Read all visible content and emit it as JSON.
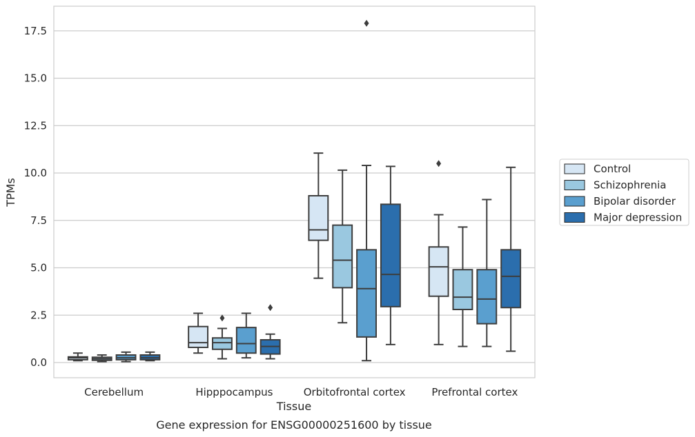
{
  "chart_data": {
    "type": "box",
    "caption": "Gene expression for ENSG00000251600 by tissue",
    "xlabel": "Tissue",
    "ylabel": "TPMs",
    "ylim": [
      -0.8,
      18.8
    ],
    "yticks": [
      "0.0",
      "2.5",
      "5.0",
      "7.5",
      "10.0",
      "12.5",
      "15.0",
      "17.5"
    ],
    "ytick_values": [
      0,
      2.5,
      5.0,
      7.5,
      10.0,
      12.5,
      15.0,
      17.5
    ],
    "grid": "horizontal",
    "legend_position": "right",
    "categories": [
      "Cerebellum",
      "Hipppocampus",
      "Orbitofrontal cortex",
      "Prefrontal cortex"
    ],
    "series": [
      {
        "name": "Control",
        "color": "#d6e6f4",
        "boxes": [
          {
            "whisker_low": 0.1,
            "q1": 0.15,
            "median": 0.25,
            "q3": 0.3,
            "whisker_high": 0.5,
            "outliers": []
          },
          {
            "whisker_low": 0.5,
            "q1": 0.8,
            "median": 1.05,
            "q3": 1.9,
            "whisker_high": 2.6,
            "outliers": []
          },
          {
            "whisker_low": 4.45,
            "q1": 6.45,
            "median": 7.0,
            "q3": 8.8,
            "whisker_high": 11.05,
            "outliers": []
          },
          {
            "whisker_low": 0.95,
            "q1": 3.5,
            "median": 5.05,
            "q3": 6.1,
            "whisker_high": 7.8,
            "outliers": [
              10.5
            ]
          }
        ]
      },
      {
        "name": "Schizophrenia",
        "color": "#9ac8e0",
        "boxes": [
          {
            "whisker_low": 0.05,
            "q1": 0.12,
            "median": 0.2,
            "q3": 0.28,
            "whisker_high": 0.4,
            "outliers": []
          },
          {
            "whisker_low": 0.2,
            "q1": 0.7,
            "median": 1.05,
            "q3": 1.3,
            "whisker_high": 1.8,
            "outliers": [
              2.35
            ]
          },
          {
            "whisker_low": 2.1,
            "q1": 3.95,
            "median": 5.4,
            "q3": 7.25,
            "whisker_high": 10.15,
            "outliers": []
          },
          {
            "whisker_low": 0.85,
            "q1": 2.8,
            "median": 3.45,
            "q3": 4.9,
            "whisker_high": 7.15,
            "outliers": []
          }
        ]
      },
      {
        "name": "Bipolar disorder",
        "color": "#5a9fcf",
        "boxes": [
          {
            "whisker_low": 0.05,
            "q1": 0.15,
            "median": 0.25,
            "q3": 0.4,
            "whisker_high": 0.55,
            "outliers": []
          },
          {
            "whisker_low": 0.25,
            "q1": 0.5,
            "median": 1.0,
            "q3": 1.85,
            "whisker_high": 2.6,
            "outliers": []
          },
          {
            "whisker_low": 0.1,
            "q1": 1.35,
            "median": 3.9,
            "q3": 5.95,
            "whisker_high": 10.4,
            "outliers": [
              17.9
            ]
          },
          {
            "whisker_low": 0.85,
            "q1": 2.05,
            "median": 3.35,
            "q3": 4.9,
            "whisker_high": 8.6,
            "outliers": []
          }
        ]
      },
      {
        "name": "Major depression",
        "color": "#2b6ead",
        "boxes": [
          {
            "whisker_low": 0.1,
            "q1": 0.15,
            "median": 0.25,
            "q3": 0.4,
            "whisker_high": 0.55,
            "outliers": []
          },
          {
            "whisker_low": 0.2,
            "q1": 0.45,
            "median": 0.85,
            "q3": 1.2,
            "whisker_high": 1.5,
            "outliers": [
              2.9
            ]
          },
          {
            "whisker_low": 0.95,
            "q1": 2.95,
            "median": 4.65,
            "q3": 8.35,
            "whisker_high": 10.35,
            "outliers": []
          },
          {
            "whisker_low": 0.6,
            "q1": 2.9,
            "median": 4.55,
            "q3": 5.95,
            "whisker_high": 10.3,
            "outliers": []
          }
        ]
      }
    ]
  }
}
